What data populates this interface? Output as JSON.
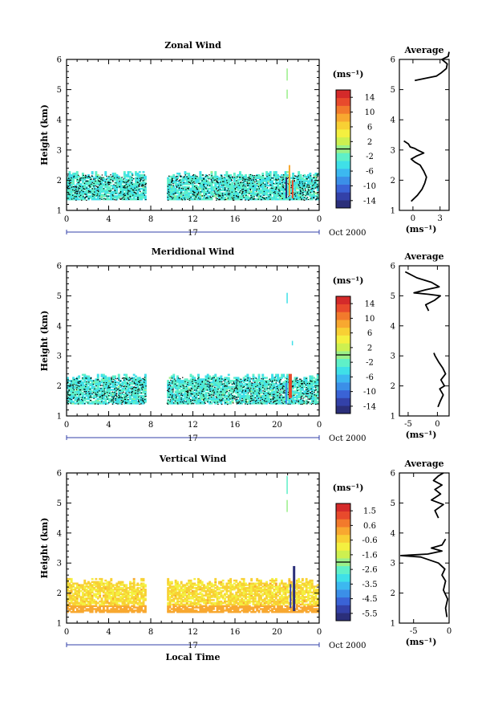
{
  "chart_data": [
    {
      "type": "heatmap",
      "title": "Zonal Wind",
      "ylabel": "Height (km)",
      "ylim": [
        1,
        6
      ],
      "y_ticks": [
        "1",
        "2",
        "3",
        "4",
        "5",
        "6"
      ],
      "x_ticks": [
        "0",
        "4",
        "8",
        "12",
        "16",
        "20",
        "0"
      ],
      "xlim": [
        0,
        24
      ],
      "day_label": "17",
      "date_label": "Oct 2000",
      "colorbar": {
        "unit": "(ms⁻¹)",
        "ticks": [
          "14",
          "10",
          "6",
          "2",
          "-2",
          "-6",
          "-10",
          "-14"
        ],
        "range": [
          -16,
          16
        ]
      },
      "dominant_value": -3,
      "data_gap_hours": [
        7.5,
        9.5
      ],
      "cloud_band_km": [
        1.35,
        2.3
      ],
      "profile": {
        "title": "Average",
        "xlabel": "(ms⁻¹)",
        "x_ticks": [
          "0",
          "3"
        ],
        "xlim": [
          -1.5,
          4
        ],
        "ylim": [
          1,
          6
        ],
        "y_ticks": [
          "1",
          "2",
          "3",
          "4",
          "5",
          "6"
        ],
        "segments": [
          {
            "x": [
              -0.2,
              0.5,
              1.0,
              1.3,
              1.5,
              1.2,
              0.8,
              0.2,
              -0.2,
              0.4,
              1.2,
              0.5,
              0.2,
              -0.3,
              -0.5,
              -1.0
            ],
            "y": [
              1.3,
              1.5,
              1.7,
              1.9,
              2.1,
              2.3,
              2.5,
              2.6,
              2.7,
              2.8,
              2.9,
              3.0,
              3.05,
              3.1,
              3.2,
              3.3
            ]
          },
          {
            "x": [
              0.2,
              1.5,
              2.6,
              3.1,
              3.7,
              3.8,
              3.2,
              3.9,
              4.0
            ],
            "y": [
              5.3,
              5.38,
              5.45,
              5.55,
              5.7,
              5.85,
              6.0,
              6.1,
              6.25
            ]
          }
        ]
      }
    },
    {
      "type": "heatmap",
      "title": "Meridional Wind",
      "ylabel": "Height (km)",
      "ylim": [
        1,
        6
      ],
      "y_ticks": [
        "1",
        "2",
        "3",
        "4",
        "5",
        "6"
      ],
      "x_ticks": [
        "0",
        "4",
        "8",
        "12",
        "16",
        "20",
        "0"
      ],
      "xlim": [
        0,
        24
      ],
      "day_label": "17",
      "date_label": "Oct 2000",
      "colorbar": {
        "unit": "(ms⁻¹)",
        "ticks": [
          "14",
          "10",
          "6",
          "2",
          "-2",
          "-6",
          "-10",
          "-14"
        ],
        "range": [
          -16,
          16
        ]
      },
      "dominant_value": -3,
      "data_gap_hours": [
        7.5,
        9.5
      ],
      "cloud_band_km": [
        1.4,
        2.4
      ],
      "profile": {
        "title": "Average",
        "xlabel": "(ms⁻¹)",
        "x_ticks": [
          "-5",
          "0"
        ],
        "xlim": [
          -6.5,
          2
        ],
        "ylim": [
          1,
          6
        ],
        "y_ticks": [
          "1",
          "2",
          "3",
          "4",
          "5",
          "6"
        ],
        "segments": [
          {
            "x": [
              0.1,
              0.5,
              1.0,
              0.4,
              1.2,
              0.6,
              1.4,
              0.9,
              0.2,
              -0.4,
              -0.6
            ],
            "y": [
              1.3,
              1.5,
              1.7,
              1.9,
              2.0,
              2.2,
              2.4,
              2.6,
              2.8,
              3.0,
              3.1
            ]
          },
          {
            "x": [
              -1.5,
              -2.0,
              -0.5,
              0.5,
              -1.5,
              -4.0,
              -2.0,
              0.3,
              -1.0,
              -3.5,
              -5.5
            ],
            "y": [
              4.5,
              4.7,
              4.85,
              5.0,
              5.05,
              5.1,
              5.2,
              5.3,
              5.45,
              5.6,
              5.8
            ]
          }
        ]
      }
    },
    {
      "type": "heatmap",
      "title": "Vertical Wind",
      "xlabel": "Local Time",
      "ylabel": "Height (km)",
      "ylim": [
        1,
        6
      ],
      "y_ticks": [
        "1",
        "2",
        "3",
        "4",
        "5",
        "6"
      ],
      "x_ticks": [
        "0",
        "4",
        "8",
        "12",
        "16",
        "20",
        "0"
      ],
      "xlim": [
        0,
        24
      ],
      "day_label": "17",
      "date_label": "Oct 2000",
      "colorbar": {
        "unit": "(ms⁻¹)",
        "ticks": [
          "1.5",
          "0.6",
          "-0.6",
          "-1.6",
          "-2.6",
          "-3.5",
          "-4.5",
          "-5.5"
        ],
        "range": [
          -6,
          2
        ]
      },
      "dominant_value": -0.6,
      "data_gap_hours": [
        7.5,
        9.5
      ],
      "cloud_band_km": [
        1.35,
        2.5
      ],
      "profile": {
        "title": "Average",
        "xlabel": "(ms⁻¹)",
        "x_ticks": [
          "-5",
          "0"
        ],
        "xlim": [
          -7,
          0
        ],
        "ylim": [
          1,
          6
        ],
        "y_ticks": [
          "1",
          "2",
          "3",
          "4",
          "5",
          "6"
        ],
        "segments": [
          {
            "x": [
              -0.3,
              -0.5,
              -0.2,
              -0.8,
              -0.5,
              -1.0,
              -0.6,
              -1.5,
              -4.0,
              -6.8,
              -3.0,
              -1.0,
              -2.5,
              -1.0,
              -0.5
            ],
            "y": [
              1.2,
              1.5,
              1.8,
              2.1,
              2.4,
              2.6,
              2.8,
              3.0,
              3.2,
              3.25,
              3.3,
              3.4,
              3.5,
              3.6,
              3.8
            ]
          },
          {
            "x": [
              -1.5,
              -2.0,
              -0.8,
              -2.5,
              -1.2,
              -2.0,
              -1.0,
              -2.2,
              -1.5,
              -0.8
            ],
            "y": [
              4.5,
              4.75,
              4.95,
              5.1,
              5.3,
              5.45,
              5.6,
              5.75,
              5.9,
              6.0
            ]
          }
        ]
      }
    }
  ]
}
